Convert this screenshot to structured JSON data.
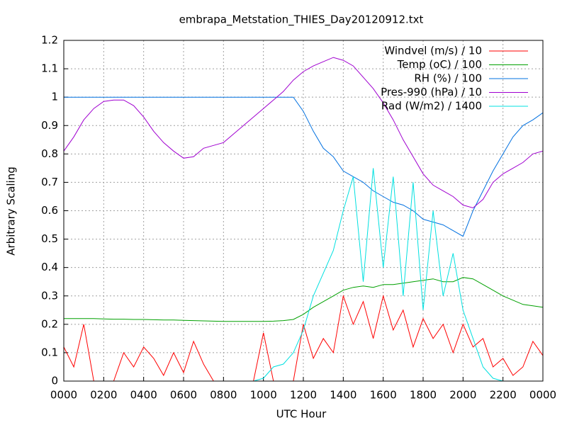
{
  "chart_data": {
    "type": "line",
    "title": "embrapa_Metstation_THIES_Day20120912.txt",
    "xlabel": "UTC Hour",
    "ylabel": "Arbitrary Scaling",
    "x": [
      0,
      0.5,
      1,
      1.5,
      2,
      2.5,
      3,
      3.5,
      4,
      4.5,
      5,
      5.5,
      6,
      6.5,
      7,
      7.5,
      8,
      8.5,
      9,
      9.5,
      10,
      10.5,
      11,
      11.5,
      12,
      12.5,
      13,
      13.5,
      14,
      14.5,
      15,
      15.5,
      16,
      16.5,
      17,
      17.5,
      18,
      18.5,
      19,
      19.5,
      20,
      20.5,
      21,
      21.5,
      22,
      22.5,
      23,
      23.5,
      24
    ],
    "series": [
      {
        "name": "Windvel (m/s) / 10",
        "color": "#ff0000",
        "values": [
          0.12,
          0.05,
          0.2,
          0,
          0,
          0,
          0.1,
          0.05,
          0.12,
          0.08,
          0.02,
          0.1,
          0.03,
          0.14,
          0.06,
          0,
          0,
          0,
          0,
          0,
          0.17,
          0,
          0,
          0,
          0.2,
          0.08,
          0.15,
          0.1,
          0.3,
          0.2,
          0.28,
          0.15,
          0.3,
          0.18,
          0.25,
          0.12,
          0.22,
          0.15,
          0.2,
          0.1,
          0.2,
          0.12,
          0.15,
          0.05,
          0.08,
          0.02,
          0.05,
          0.14,
          0.09
        ]
      },
      {
        "name": "Temp (oC) / 100",
        "color": "#00a000",
        "values": [
          0.22,
          0.22,
          0.22,
          0.22,
          0.219,
          0.218,
          0.218,
          0.217,
          0.217,
          0.216,
          0.215,
          0.215,
          0.214,
          0.213,
          0.212,
          0.211,
          0.21,
          0.21,
          0.21,
          0.21,
          0.21,
          0.211,
          0.213,
          0.217,
          0.235,
          0.26,
          0.28,
          0.3,
          0.32,
          0.33,
          0.335,
          0.33,
          0.34,
          0.34,
          0.345,
          0.35,
          0.355,
          0.36,
          0.35,
          0.35,
          0.365,
          0.36,
          0.34,
          0.32,
          0.3,
          0.285,
          0.27,
          0.265,
          0.26
        ]
      },
      {
        "name": "RH (%) / 100",
        "color": "#0070e0",
        "values": [
          1,
          1,
          1,
          1,
          1,
          1,
          1,
          1,
          1,
          1,
          1,
          1,
          1,
          1,
          1,
          1,
          1,
          1,
          1,
          1,
          1,
          1,
          1,
          1,
          0.95,
          0.88,
          0.82,
          0.79,
          0.74,
          0.72,
          0.7,
          0.67,
          0.65,
          0.63,
          0.62,
          0.6,
          0.57,
          0.56,
          0.55,
          0.53,
          0.51,
          0.6,
          0.67,
          0.74,
          0.8,
          0.86,
          0.9,
          0.92,
          0.945
        ]
      },
      {
        "name": "Pres-990 (hPa) / 10",
        "color": "#a000d0",
        "values": [
          0.81,
          0.86,
          0.92,
          0.96,
          0.985,
          0.99,
          0.99,
          0.97,
          0.93,
          0.88,
          0.84,
          0.81,
          0.785,
          0.79,
          0.82,
          0.83,
          0.84,
          0.87,
          0.9,
          0.93,
          0.96,
          0.99,
          1.02,
          1.06,
          1.09,
          1.11,
          1.125,
          1.14,
          1.13,
          1.11,
          1.07,
          1.03,
          0.98,
          0.92,
          0.85,
          0.79,
          0.73,
          0.69,
          0.67,
          0.65,
          0.62,
          0.61,
          0.64,
          0.7,
          0.73,
          0.75,
          0.77,
          0.8,
          0.81
        ]
      },
      {
        "name": "Rad (W/m2) / 1400",
        "color": "#00e0e0",
        "values": [
          0,
          0,
          0,
          0,
          0,
          0,
          0,
          0,
          0,
          0,
          0,
          0,
          0,
          0,
          0,
          0,
          0,
          0,
          0,
          0,
          0.01,
          0.05,
          0.06,
          0.1,
          0.18,
          0.3,
          0.38,
          0.46,
          0.6,
          0.72,
          0.35,
          0.75,
          0.4,
          0.72,
          0.3,
          0.7,
          0.25,
          0.6,
          0.3,
          0.45,
          0.25,
          0.15,
          0.05,
          0.01,
          0,
          0,
          0,
          0,
          0
        ]
      }
    ],
    "xlim": [
      0,
      24
    ],
    "xticks": [
      {
        "value": 0,
        "label": "0000"
      },
      {
        "value": 2,
        "label": "0200"
      },
      {
        "value": 4,
        "label": "0400"
      },
      {
        "value": 6,
        "label": "0600"
      },
      {
        "value": 8,
        "label": "0800"
      },
      {
        "value": 10,
        "label": "1000"
      },
      {
        "value": 12,
        "label": "1200"
      },
      {
        "value": 14,
        "label": "1400"
      },
      {
        "value": 16,
        "label": "1600"
      },
      {
        "value": 18,
        "label": "1800"
      },
      {
        "value": 20,
        "label": "2000"
      },
      {
        "value": 22,
        "label": "2200"
      },
      {
        "value": 24,
        "label": "0000"
      }
    ],
    "ylim": [
      0,
      1.2
    ],
    "yticks": [
      0,
      0.1,
      0.2,
      0.3,
      0.4,
      0.5,
      0.6,
      0.7,
      0.8,
      0.9,
      1,
      1.1,
      1.2
    ],
    "grid": true,
    "legend": "top right"
  }
}
